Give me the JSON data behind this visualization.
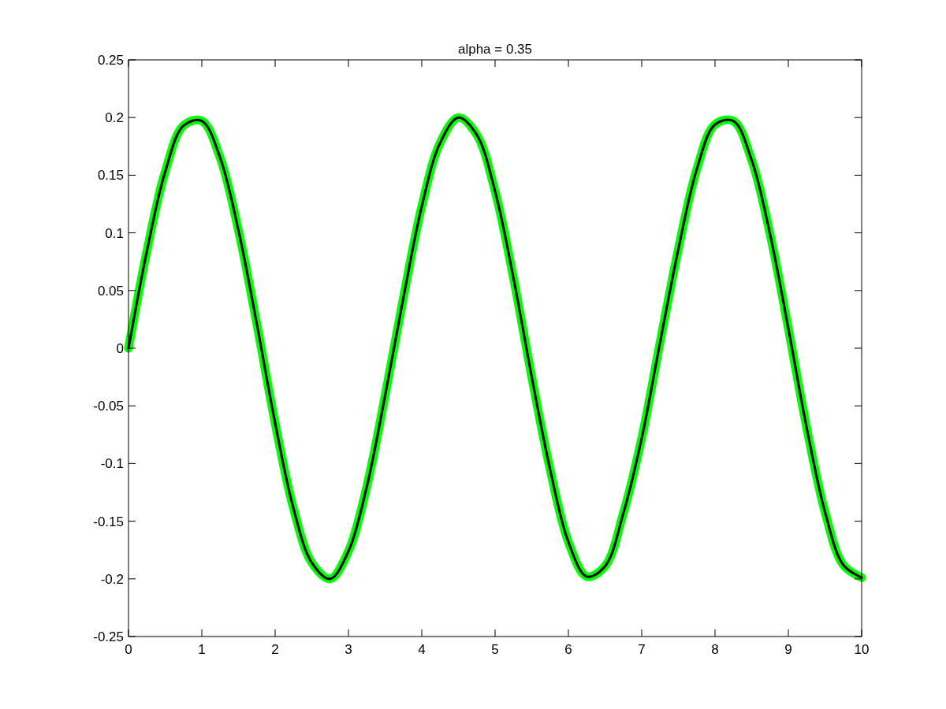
{
  "chart_data": {
    "type": "line",
    "title": "alpha = 0.35",
    "x": [
      0,
      0.25,
      0.5,
      0.75,
      1,
      1.25,
      1.5,
      1.75,
      2,
      2.25,
      2.5,
      2.75,
      3,
      3.25,
      3.5,
      3.75,
      4,
      4.25,
      4.5,
      4.75,
      5,
      5.25,
      5.5,
      5.75,
      6,
      6.25,
      6.5,
      6.75,
      7,
      7.25,
      7.5,
      7.75,
      8,
      8.25,
      8.5,
      8.75,
      9,
      9.25,
      9.5,
      9.75,
      10
    ],
    "series": [
      {
        "color": "#00ff00",
        "values": [
          0,
          0.084,
          0.153,
          0.193,
          0.197,
          0.165,
          0.102,
          0.021,
          -0.065,
          -0.139,
          -0.186,
          -0.2,
          -0.176,
          -0.12,
          -0.041,
          0.044,
          0.123,
          0.178,
          0.2,
          0.185,
          0.136,
          0.061,
          -0.025,
          -0.105,
          -0.168,
          -0.198,
          -0.189,
          -0.143,
          -0.078,
          0.005,
          0.086,
          0.155,
          0.194,
          0.197,
          0.163,
          0.099,
          0.017,
          -0.069,
          -0.142,
          -0.188,
          -0.199
        ]
      },
      {
        "color": "#000000",
        "values": [
          0,
          0.084,
          0.153,
          0.193,
          0.197,
          0.165,
          0.102,
          0.021,
          -0.065,
          -0.139,
          -0.186,
          -0.2,
          -0.176,
          -0.12,
          -0.041,
          0.044,
          0.123,
          0.178,
          0.2,
          0.185,
          0.136,
          0.061,
          -0.025,
          -0.105,
          -0.168,
          -0.198,
          -0.189,
          -0.143,
          -0.078,
          0.005,
          0.086,
          0.155,
          0.194,
          0.197,
          0.163,
          0.099,
          0.017,
          -0.069,
          -0.142,
          -0.188,
          -0.199
        ]
      }
    ],
    "xlim": [
      0,
      10
    ],
    "xticks": [
      0,
      1,
      2,
      3,
      4,
      5,
      6,
      7,
      8,
      9,
      10
    ],
    "ylim": [
      -0.25,
      0.25
    ],
    "yticks": [
      -0.25,
      -0.2,
      -0.15,
      -0.1,
      -0.05,
      0,
      0.05,
      0.1,
      0.15,
      0.2,
      0.25
    ],
    "grid": false,
    "marker": "none",
    "line_style": "solid"
  }
}
